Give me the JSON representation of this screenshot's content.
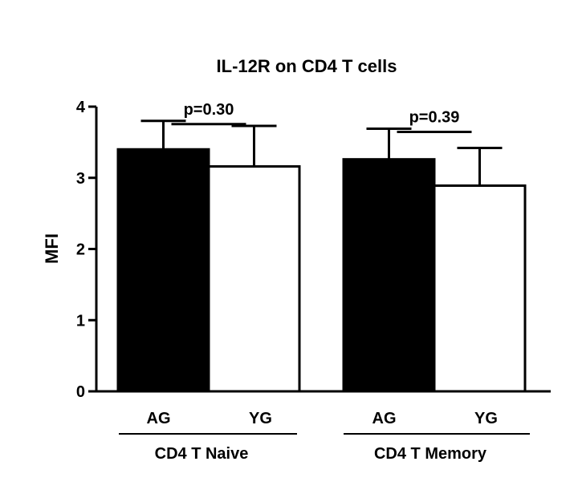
{
  "chart_data": {
    "type": "bar",
    "title": "IL-12R on CD4 T cells",
    "ylabel": "MFI",
    "xlabel": "",
    "ylim": [
      0,
      4
    ],
    "yticks": [
      0,
      1,
      2,
      3,
      4
    ],
    "groups": [
      {
        "name": "CD4  T Naive",
        "p_value": "p=0.30",
        "bars": [
          {
            "label": "AG",
            "value": 3.4,
            "error": 0.4,
            "color": "#000000"
          },
          {
            "label": "YG",
            "value": 3.16,
            "error": 0.57,
            "color": "#ffffff"
          }
        ]
      },
      {
        "name": "CD4  T Memory",
        "p_value": "p=0.39",
        "bars": [
          {
            "label": "AG",
            "value": 3.26,
            "error": 0.43,
            "color": "#000000"
          },
          {
            "label": "YG",
            "value": 2.89,
            "error": 0.53,
            "color": "#ffffff"
          }
        ]
      }
    ],
    "grid": false,
    "legend": "none"
  }
}
